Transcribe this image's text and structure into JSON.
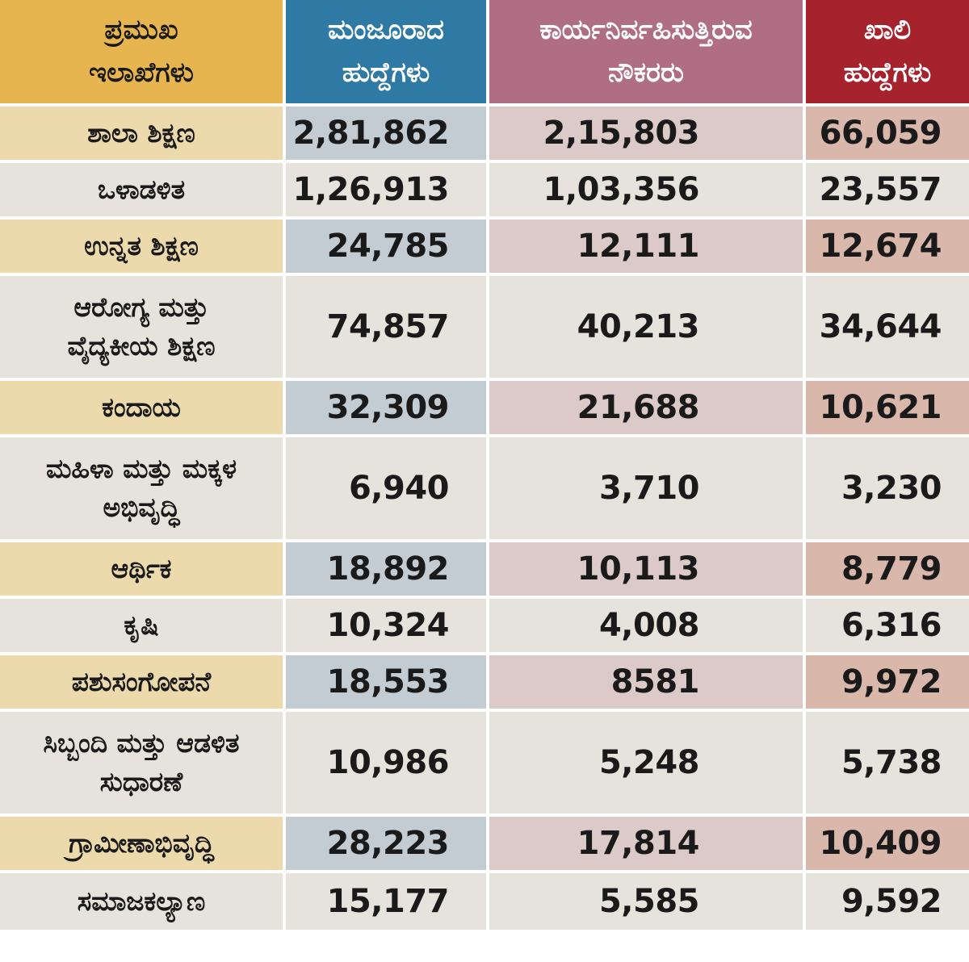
{
  "headers": {
    "department": "ಪ್ರಮುಖ\nಇಲಾಖೆಗಳು",
    "sanctioned": "ಮಂಜೂರಾದ\nಹುದ್ದೆಗಳು",
    "working": "ಕಾರ್ಯನಿರ್ವಹಿಸುತ್ತಿರುವ\nನೌಕರರು",
    "vacant": "ಖಾಲಿ\nಹುದ್ದೆಗಳು"
  },
  "colors": {
    "department_header": "#e6b54f",
    "sanctioned_header": "#2f79a5",
    "working_header": "#b06e84",
    "vacant_header": "#a6232d"
  },
  "rows": [
    {
      "department": "ಶಾಲಾ ಶಿಕ್ಷಣ",
      "sanctioned": "2,81,862",
      "working": "2,15,803",
      "vacant": "66,059"
    },
    {
      "department": "ಒಳಾಡಳಿತ",
      "sanctioned": "1,26,913",
      "working": "1,03,356",
      "vacant": "23,557"
    },
    {
      "department": "ಉನ್ನತ ಶಿಕ್ಷಣ",
      "sanctioned": "24,785",
      "working": "12,111",
      "vacant": "12,674"
    },
    {
      "department": "ಆರೋಗ್ಯ ಮತ್ತು\nವೈದ್ಯಕೀಯ ಶಿಕ್ಷಣ",
      "sanctioned": "74,857",
      "working": "40,213",
      "vacant": "34,644"
    },
    {
      "department": "ಕಂದಾಯ",
      "sanctioned": "32,309",
      "working": "21,688",
      "vacant": "10,621"
    },
    {
      "department": "ಮಹಿಳಾ ಮತ್ತು ಮಕ್ಕಳ\nಅಭಿವೃದ್ಧಿ",
      "sanctioned": "6,940",
      "working": "3,710",
      "vacant": "3,230"
    },
    {
      "department": "ಆರ್ಥಿಕ",
      "sanctioned": "18,892",
      "working": "10,113",
      "vacant": "8,779"
    },
    {
      "department": "ಕೃಷಿ",
      "sanctioned": "10,324",
      "working": "4,008",
      "vacant": "6,316"
    },
    {
      "department": "ಪಶುಸಂಗೋಪನೆ",
      "sanctioned": "18,553",
      "working": "8581",
      "vacant": "9,972"
    },
    {
      "department": "ಸಿಬ್ಬಂದಿ ಮತ್ತು ಆಡಳಿತ\nಸುಧಾರಣೆ",
      "sanctioned": "10,986",
      "working": "5,248",
      "vacant": "5,738"
    },
    {
      "department": "ಗ್ರಾಮೀಣಾಭಿವೃದ್ಧಿ",
      "sanctioned": "28,223",
      "working": "17,814",
      "vacant": "10,409"
    },
    {
      "department": "ಸಮಾಜಕಲ್ಯಾಣ",
      "sanctioned": "15,177",
      "working": "5,585",
      "vacant": "9,592"
    }
  ]
}
